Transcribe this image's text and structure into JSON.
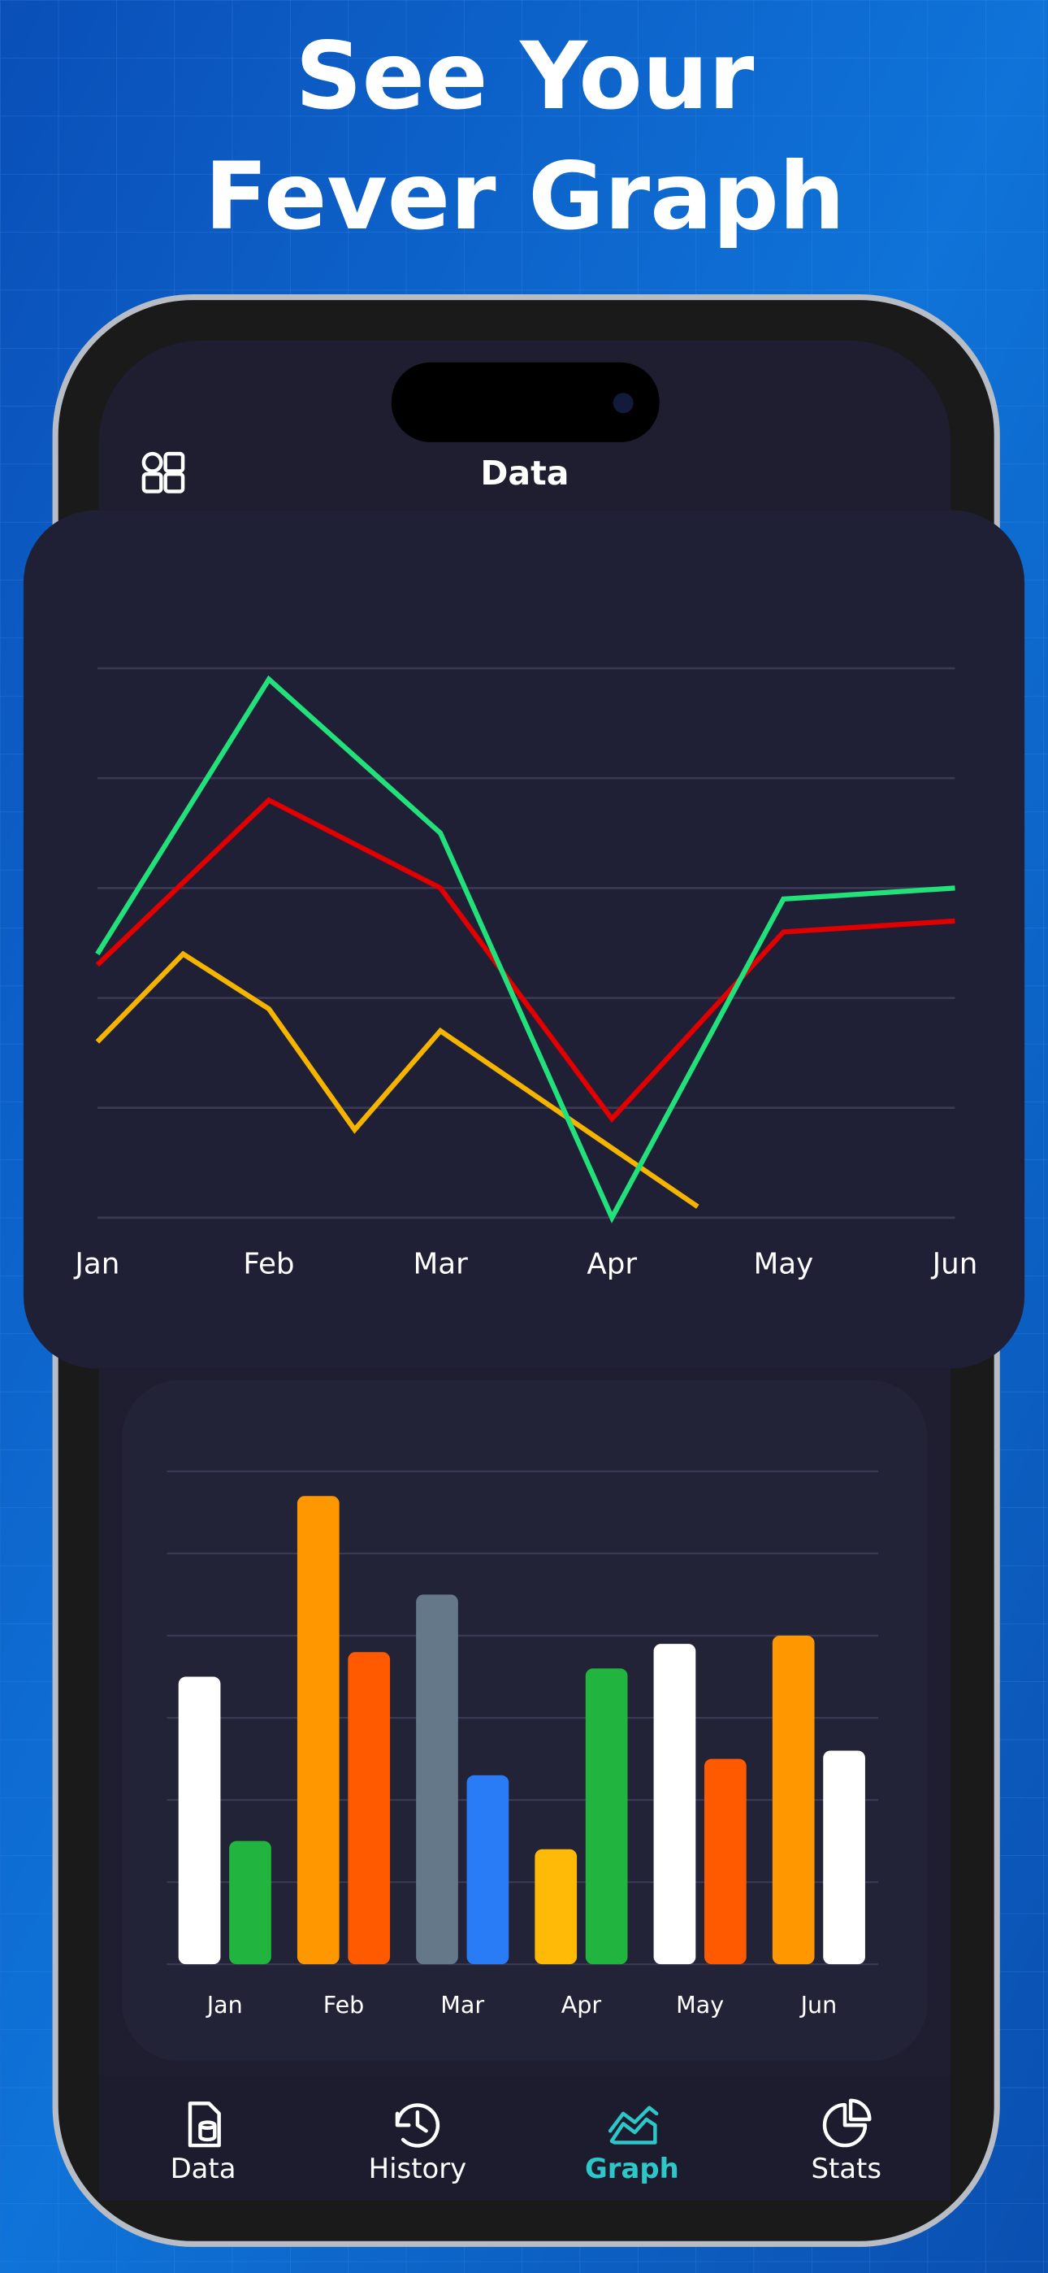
{
  "header": {
    "title_lines": [
      "See Your",
      "Fever Graph"
    ]
  },
  "app_bar": {
    "title": "Data"
  },
  "chart_data": [
    {
      "type": "line",
      "xlim": [
        0,
        5
      ],
      "xticks": [
        {
          "value": 0,
          "label": "Jan"
        },
        {
          "value": 1,
          "label": "Feb"
        },
        {
          "value": 2,
          "label": "Mar"
        },
        {
          "value": 3,
          "label": "Apr"
        },
        {
          "value": 4,
          "label": "May"
        },
        {
          "value": 5,
          "label": "Jun"
        }
      ],
      "ylim": [
        0,
        5
      ],
      "yticks": [
        0,
        1,
        2,
        3,
        4,
        5
      ],
      "grid": true,
      "series": [
        {
          "color": "#f5b400",
          "x": [
            0,
            0.5,
            1,
            1.5,
            2,
            3.5
          ],
          "values": [
            1.6,
            2.4,
            1.9,
            0.8,
            1.7,
            0.1
          ]
        },
        {
          "color": "#e00000",
          "x": [
            0,
            1,
            2,
            3,
            4,
            5
          ],
          "values": [
            2.3,
            3.8,
            3.0,
            0.9,
            2.6,
            2.7
          ]
        },
        {
          "color": "#22e07a",
          "x": [
            0,
            1,
            2,
            3,
            4,
            5
          ],
          "values": [
            2.4,
            4.9,
            3.5,
            0,
            2.9,
            3.0
          ]
        }
      ]
    },
    {
      "type": "bar",
      "categories": [
        "Jan",
        "Feb",
        "Mar",
        "Apr",
        "May",
        "Jun"
      ],
      "ylim": [
        0,
        6
      ],
      "yticks": [
        0,
        1,
        2,
        3,
        4,
        5,
        6
      ],
      "grid": true,
      "series": [
        {
          "colors": [
            "#ffffff",
            "#ff9800",
            "#657889",
            "#ffba08",
            "#ffffff",
            "#ff9800"
          ],
          "values": [
            3.5,
            5.7,
            4.5,
            1.4,
            3.9,
            4.0
          ]
        },
        {
          "colors": [
            "#21b53f",
            "#ff5a00",
            "#2a7cf6",
            "#21b53f",
            "#ff5a00",
            "#ffffff"
          ],
          "values": [
            1.5,
            3.8,
            2.3,
            3.6,
            2.5,
            2.6
          ]
        }
      ]
    }
  ],
  "tab_bar": {
    "active_color": "#2ec6c6",
    "color": "#ffffff",
    "items": [
      {
        "label": "Data",
        "active": false
      },
      {
        "label": "History",
        "active": false
      },
      {
        "label": "Graph",
        "active": true
      },
      {
        "label": "Stats",
        "active": false
      }
    ]
  }
}
